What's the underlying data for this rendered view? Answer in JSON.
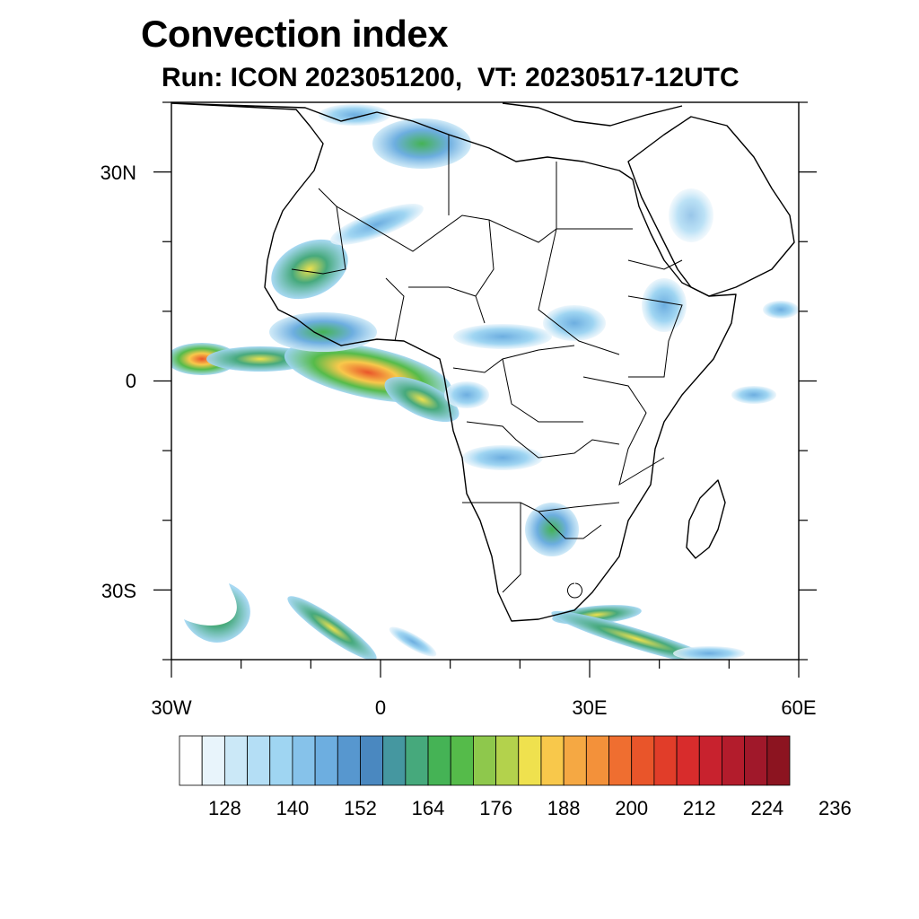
{
  "header": {
    "title": "Convection index",
    "subtitle": "Run: ICON 2023051200,  VT: 20230517-12UTC"
  },
  "map": {
    "projection": "lat-lon",
    "lon_range": [
      -30,
      60
    ],
    "lat_range": [
      -40,
      40
    ],
    "background": "#ffffff",
    "border_color": "#000000",
    "y_ticks": [
      {
        "lat": 30,
        "label": "30N"
      },
      {
        "lat": 0,
        "label": "0"
      },
      {
        "lat": -30,
        "label": "30S"
      }
    ],
    "x_ticks": [
      {
        "lon": -30,
        "label": "30W"
      },
      {
        "lon": 0,
        "label": "0"
      },
      {
        "lon": 30,
        "label": "30E"
      },
      {
        "lon": 60,
        "label": "60E"
      }
    ]
  },
  "colorbar": {
    "colors": [
      "#ffffff",
      "#e8f4fb",
      "#cbe8f7",
      "#b4def5",
      "#9fd5f2",
      "#86c2ea",
      "#6daee0",
      "#5797cf",
      "#4a88c0",
      "#4597a0",
      "#46a97c",
      "#45b355",
      "#55bb4a",
      "#8ec84c",
      "#b3d24c",
      "#efe14e",
      "#f8c84b",
      "#f5a843",
      "#f3913a",
      "#ef6e30",
      "#e9552a",
      "#e13d29",
      "#d82c2c",
      "#c8222e",
      "#b31c2c",
      "#a0182a",
      "#8c1420"
    ],
    "labels": [
      "128",
      "140",
      "152",
      "164",
      "176",
      "188",
      "200",
      "212",
      "224",
      "236"
    ]
  }
}
